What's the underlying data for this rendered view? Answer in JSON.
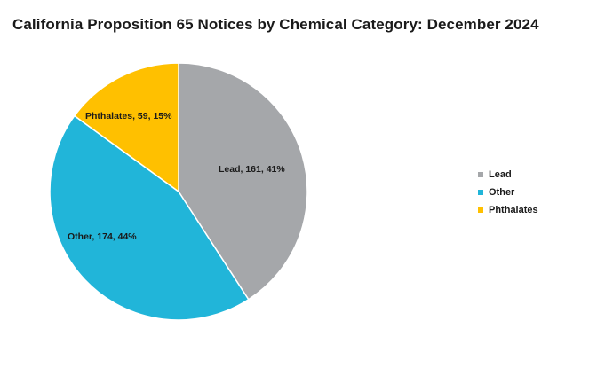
{
  "chart_data": {
    "type": "pie",
    "title": "California Proposition 65 Notices by Chemical Category: December 2024",
    "slices": [
      {
        "name": "Lead",
        "value": 161,
        "percent": 41,
        "label": "Lead, 161, 41%",
        "color": "#a5a7aa"
      },
      {
        "name": "Other",
        "value": 174,
        "percent": 44,
        "label": "Other, 174, 44%",
        "color": "#21b5d9"
      },
      {
        "name": "Phthalates",
        "value": 59,
        "percent": 15,
        "label": "Phthalates, 59, 15%",
        "color": "#ffc000"
      }
    ],
    "legend": [
      "Lead",
      "Other",
      "Phthalates"
    ],
    "legend_position": "right"
  }
}
